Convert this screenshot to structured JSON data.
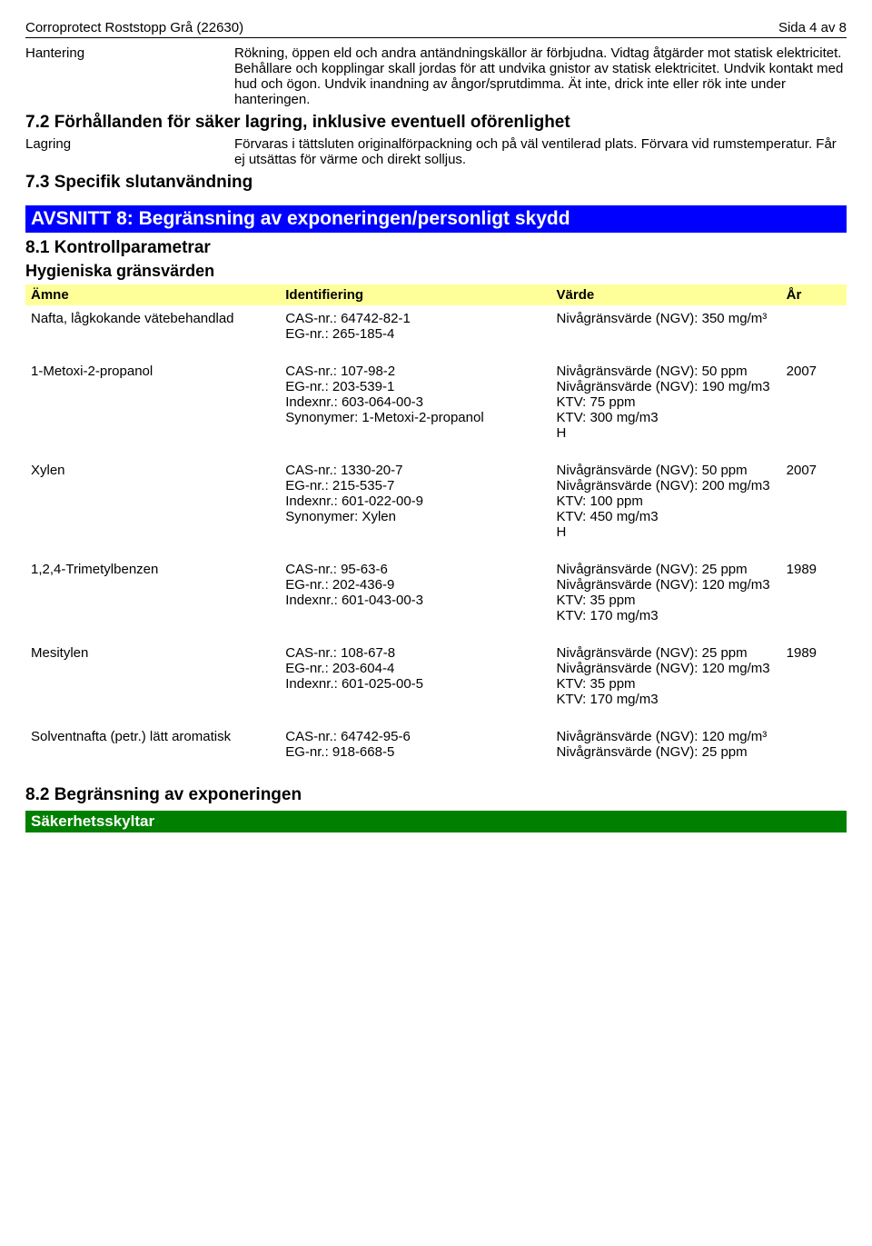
{
  "header": {
    "title": "Corroprotect Roststopp Grå (22630)",
    "page": "Sida 4 av 8"
  },
  "hantering": {
    "label": "Hantering",
    "text": "Rökning, öppen eld och andra antändningskällor är förbjudna. Vidtag åtgärder mot statisk elektricitet. Behållare och kopplingar skall jordas för att undvika gnistor av statisk elektricitet. Undvik kontakt med hud och ögon. Undvik inandning av ångor/sprutdimma. Ät inte, drick inte eller rök inte under hanteringen."
  },
  "s72": {
    "title": "7.2 Förhållanden för säker lagring, inklusive eventuell oförenlighet",
    "lagring_label": "Lagring",
    "lagring_text": "Förvaras i tättsluten originalförpackning och på väl ventilerad plats. Förvara vid rumstemperatur. Får ej utsättas för värme och direkt solljus."
  },
  "s73": {
    "title": "7.3 Specifik slutanvändning"
  },
  "avsnitt8": {
    "title": "AVSNITT 8: Begränsning av exponeringen/personligt skydd"
  },
  "s81": {
    "title": "8.1 Kontrollparametrar",
    "subtitle": "Hygieniska gränsvärden"
  },
  "table": {
    "headers": {
      "amne": "Ämne",
      "id": "Identifiering",
      "val": "Värde",
      "ar": "År"
    },
    "rows": [
      {
        "amne": "Nafta, lågkokande vätebehandlad",
        "id": "CAS-nr.: 64742-82-1\nEG-nr.: 265-185-4",
        "val": "Nivågränsvärde (NGV): 350 mg/m³",
        "ar": ""
      },
      {
        "amne": "1-Metoxi-2-propanol",
        "id": "CAS-nr.: 107-98-2\nEG-nr.: 203-539-1\nIndexnr.: 603-064-00-3\nSynonymer: 1-Metoxi-2-propanol",
        "val": "Nivågränsvärde (NGV): 50 ppm\nNivågränsvärde (NGV): 190 mg/m3\nKTV: 75 ppm\nKTV: 300 mg/m3\nH",
        "ar": "2007"
      },
      {
        "amne": "Xylen",
        "id": "CAS-nr.: 1330-20-7\nEG-nr.: 215-535-7\nIndexnr.: 601-022-00-9\nSynonymer: Xylen",
        "val": "Nivågränsvärde (NGV): 50 ppm\nNivågränsvärde (NGV): 200 mg/m3\nKTV: 100 ppm\nKTV: 450 mg/m3\nH",
        "ar": "2007"
      },
      {
        "amne": "1,2,4-Trimetylbenzen",
        "id": "CAS-nr.: 95-63-6\nEG-nr.: 202-436-9\nIndexnr.: 601-043-00-3",
        "val": "Nivågränsvärde (NGV): 25 ppm\nNivågränsvärde (NGV): 120 mg/m3\nKTV: 35 ppm\nKTV: 170 mg/m3",
        "ar": "1989"
      },
      {
        "amne": "Mesitylen",
        "id": "CAS-nr.: 108-67-8\nEG-nr.: 203-604-4\nIndexnr.: 601-025-00-5",
        "val": "Nivågränsvärde (NGV): 25 ppm\nNivågränsvärde (NGV): 120 mg/m3\nKTV: 35 ppm\nKTV: 170 mg/m3",
        "ar": "1989"
      },
      {
        "amne": "Solventnafta (petr.) lätt aromatisk",
        "id": "CAS-nr.: 64742-95-6\nEG-nr.: 918-668-5",
        "val": "Nivågränsvärde (NGV): 120 mg/m³\nNivågränsvärde (NGV): 25 ppm",
        "ar": ""
      }
    ]
  },
  "s82": {
    "title": "8.2 Begränsning av exponeringen"
  },
  "skyltar": {
    "title": "Säkerhetsskyltar"
  }
}
